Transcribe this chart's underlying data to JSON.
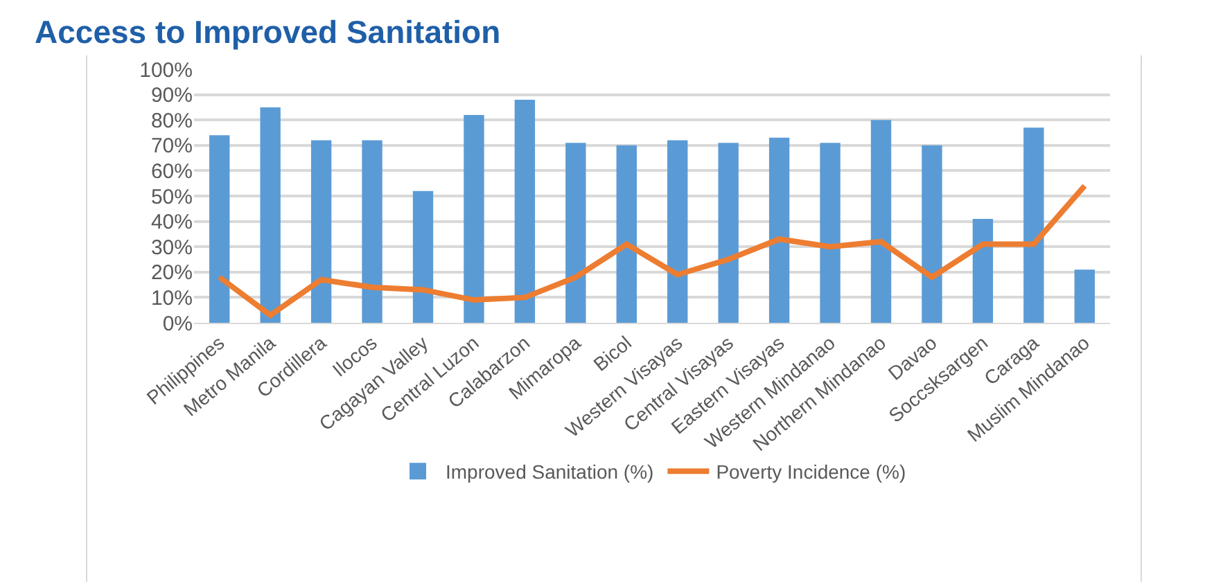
{
  "chart_data": {
    "type": "bar",
    "title": "Access to Improved Sanitation",
    "categories": [
      "Philippines",
      "Metro Manila",
      "Cordillera",
      "Ilocos",
      "Cagayan Valley",
      "Central Luzon",
      "Calabarzon",
      "Mimaropa",
      "Bicol",
      "Western Visayas",
      "Central Visayas",
      "Eastern Visayas",
      "Western Mindanao",
      "Northern Mindanao",
      "Davao",
      "Soccsksargen",
      "Caraga",
      "Muslim Mindanao"
    ],
    "series": [
      {
        "name": "Improved Sanitation (%)",
        "color": "#5b9bd5",
        "values": [
          74,
          85,
          72,
          72,
          52,
          82,
          88,
          71,
          70,
          72,
          71,
          73,
          71,
          80,
          70,
          41,
          77,
          21
        ]
      },
      {
        "name": "Poverty Incidence (%)",
        "type": "line",
        "color": "#ed7d31",
        "values": [
          18,
          3,
          17,
          14,
          13,
          9,
          10,
          18,
          31,
          19,
          25,
          33,
          30,
          32,
          18,
          31,
          31,
          54
        ]
      }
    ],
    "ylim": [
      0,
      100
    ],
    "yticks": [
      {
        "value": 0,
        "label": "0%"
      },
      {
        "value": 10,
        "label": "10%"
      },
      {
        "value": 20,
        "label": "20%"
      },
      {
        "value": 30,
        "label": "30%"
      },
      {
        "value": 40,
        "label": "40%"
      },
      {
        "value": 50,
        "label": "50%"
      },
      {
        "value": 60,
        "label": "60%"
      },
      {
        "value": 70,
        "label": "70%"
      },
      {
        "value": 80,
        "label": "80%"
      },
      {
        "value": 90,
        "label": "90%"
      },
      {
        "value": 100,
        "label": "100%"
      }
    ],
    "grid": "y",
    "legend": "bottom",
    "marker": "none",
    "line_style": "solid"
  }
}
